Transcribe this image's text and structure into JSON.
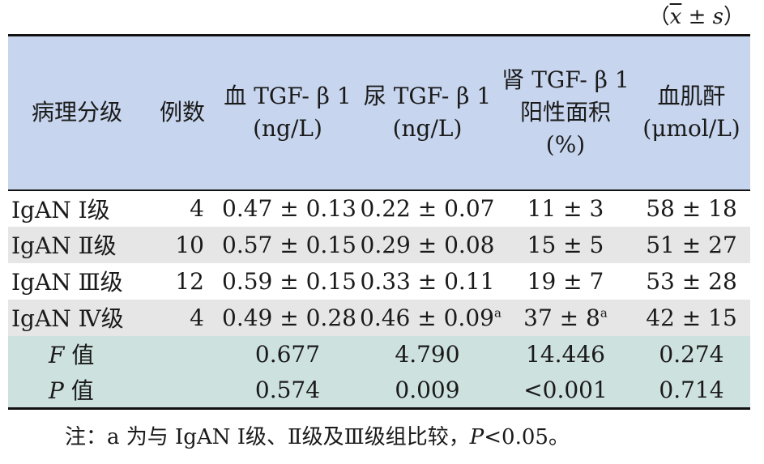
{
  "unit_note": {
    "open": "（",
    "xbar": "x",
    "pm": " ± ",
    "s": "s",
    "close": "）"
  },
  "headers": [
    {
      "line1": "病理分级",
      "line2": "",
      "line3": ""
    },
    {
      "line1": "例数",
      "line2": "",
      "line3": ""
    },
    {
      "line1": "血 TGF- β 1",
      "line2": "(ng/L)",
      "line3": ""
    },
    {
      "line1": "尿 TGF- β 1",
      "line2": "(ng/L)",
      "line3": ""
    },
    {
      "line1": "肾 TGF- β 1",
      "line2": "阳性面积",
      "line3": "(%)"
    },
    {
      "line1": "血肌酐",
      "line2": "(μmol/L)",
      "line3": ""
    }
  ],
  "rows": [
    {
      "group": "IgAN Ⅰ级",
      "n": "4",
      "serum": "0.47 ± 0.13",
      "urine": "0.22 ± 0.07",
      "urine_mark": "",
      "renal": "11 ± 3",
      "renal_mark": "",
      "scr": "58 ± 18"
    },
    {
      "group": "IgAN Ⅱ级",
      "n": "10",
      "serum": "0.57 ± 0.15",
      "urine": "0.29 ± 0.08",
      "urine_mark": "",
      "renal": "15 ± 5",
      "renal_mark": "",
      "scr": "51 ± 27"
    },
    {
      "group": "IgAN Ⅲ级",
      "n": "12",
      "serum": "0.59 ± 0.15",
      "urine": "0.33 ± 0.11",
      "urine_mark": "",
      "renal": "19 ± 7",
      "renal_mark": "",
      "scr": "53 ± 28"
    },
    {
      "group": "IgAN Ⅳ级",
      "n": "4",
      "serum": "0.49 ± 0.28",
      "urine": "0.46 ± 0.09",
      "urine_mark": "a",
      "renal": "37 ± 8",
      "renal_mark": "a",
      "scr": "42 ± 15"
    }
  ],
  "stats": [
    {
      "symbol": "F",
      "label": " 值",
      "serum": "0.677",
      "urine": "4.790",
      "renal": "14.446",
      "scr": "0.274"
    },
    {
      "symbol": "P",
      "label": " 值",
      "serum": "0.574",
      "urine": "0.009",
      "renal": "<0.001",
      "scr": "0.714"
    }
  ],
  "footnote": {
    "prefix": "注：a 为与 IgAN Ⅰ级、Ⅱ级及Ⅲ级组比较，",
    "p_symbol": "P",
    "suffix": "<0.05。"
  }
}
